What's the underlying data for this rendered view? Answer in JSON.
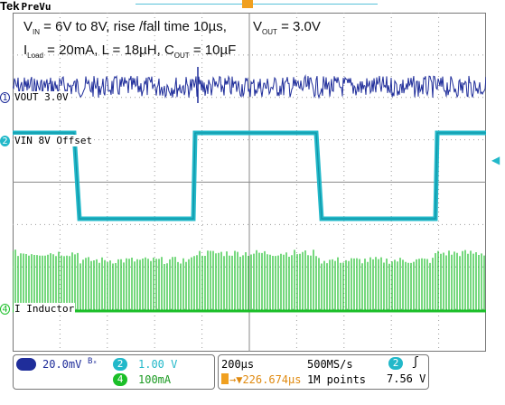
{
  "header": {
    "brand": "Tek",
    "mode": "PreVu"
  },
  "annotations": {
    "line1": {
      "prefix": "V",
      "sub": "IN",
      "suffix": " = 6V to 8V, rise /fall time 10µs,"
    },
    "line2": {
      "p1": "I",
      "s1": "Load",
      "p2": " = 20mA, L = 18µH, C",
      "s2": "OUT",
      "p3": " = 10µF"
    },
    "vout": {
      "prefix": "V",
      "sub": "OUT",
      "suffix": " = 3.0V"
    }
  },
  "channels": [
    {
      "number": "1",
      "label": "VOUT 3.0V",
      "color": "#1f2d9a"
    },
    {
      "number": "2",
      "label": "VIN 8V Offset",
      "color": "#22b8c9"
    },
    {
      "number": "4",
      "label": "I Inductor",
      "color": "#1bbf28"
    }
  ],
  "status": {
    "ch1_scale": "20.0mV",
    "ch1_bw": "Bₓ",
    "ch2_scale": "1.00 V",
    "ch4_scale": "100mA",
    "timebase": "200µs",
    "sample_rate": "500MS/s",
    "trigger_pos": "→▼226.674µs",
    "record_length": "1M points",
    "trigger_level": "7.56 V",
    "trigger_channel": "2",
    "trigger_slope": "ʃ"
  },
  "colors": {
    "ch1": "#1f2d9a",
    "ch2": "#22b8c9",
    "ch4": "#1bbf28",
    "trigger": "#f0a020"
  }
}
